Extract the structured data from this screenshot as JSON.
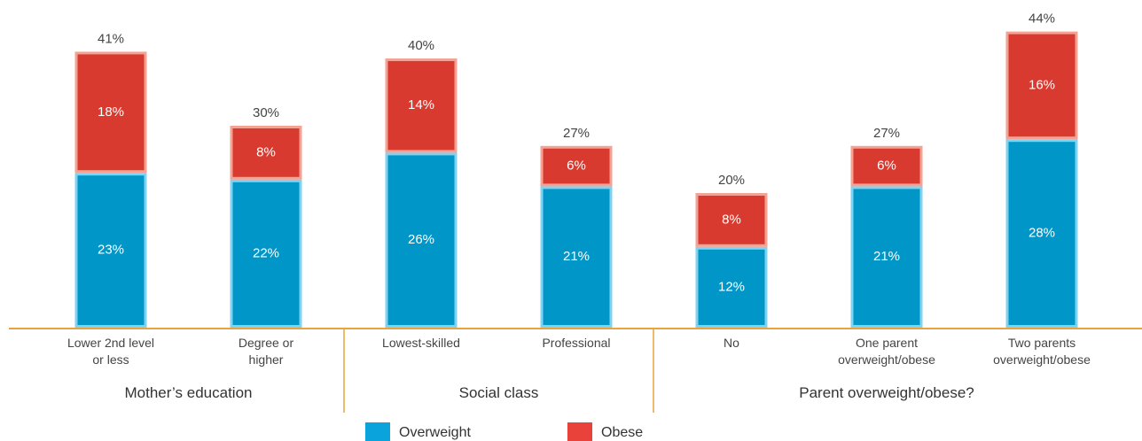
{
  "chart_data": {
    "type": "stacked-bar",
    "categories": [
      "Lower 2nd level\nor less",
      "Degree or\nhigher",
      "Lowest-skilled",
      "Professional",
      "No",
      "One parent\noverweight/obese",
      "Two parents\noverweight/obese"
    ],
    "groups": [
      "Mother’s education",
      "Mother’s education",
      "Social class",
      "Social class",
      "Parent overweight/obese?",
      "Parent overweight/obese?",
      "Parent overweight/obese?"
    ],
    "series": [
      {
        "name": "Overweight",
        "color": "#0096c8",
        "values": [
          23,
          22,
          26,
          21,
          12,
          21,
          28
        ],
        "value_labels": [
          "23%",
          "22%",
          "26%",
          "21%",
          "12%",
          "21%",
          "28%"
        ]
      },
      {
        "name": "Obese",
        "color": "#d93a2f",
        "values": [
          18,
          8,
          14,
          6,
          8,
          6,
          16
        ],
        "value_labels": [
          "18%",
          "8%",
          "14%",
          "6%",
          "8%",
          "6%",
          "16%"
        ]
      }
    ],
    "totals": {
      "values": [
        41,
        30,
        40,
        27,
        20,
        27,
        44
      ],
      "value_labels": [
        "41%",
        "30%",
        "40%",
        "27%",
        "20%",
        "27%",
        "44%"
      ]
    }
  }
}
